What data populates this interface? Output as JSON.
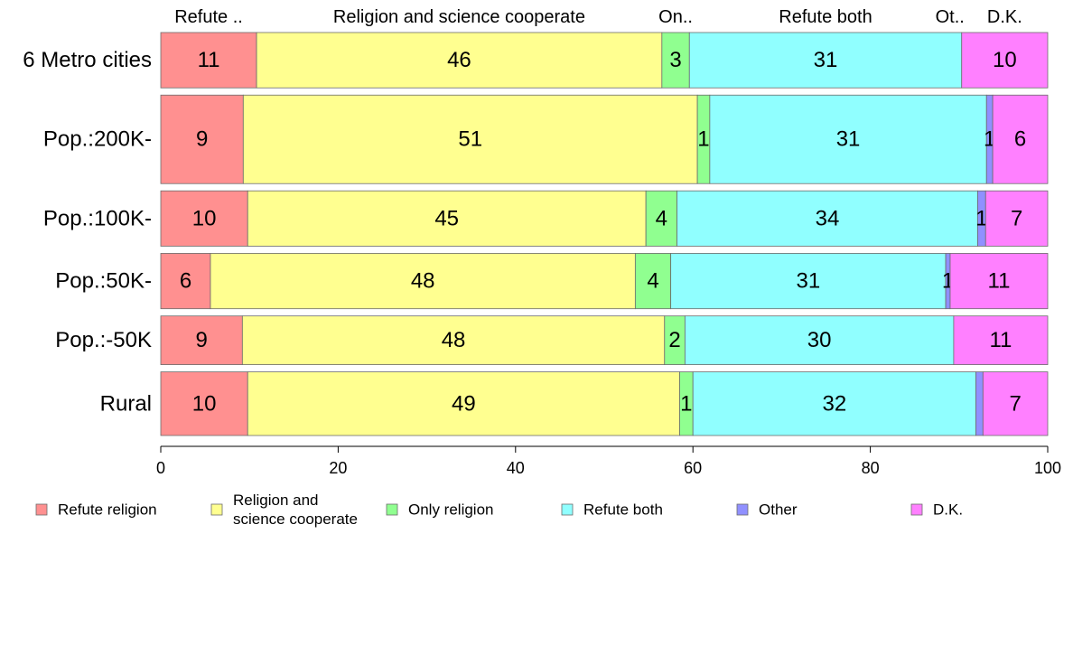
{
  "chart_data": {
    "type": "bar",
    "orientation": "horizontal",
    "stacked": true,
    "title": "",
    "xlabel": "",
    "ylabel": "",
    "xlim": [
      0,
      100
    ],
    "xticks": [
      0,
      20,
      40,
      60,
      80,
      100
    ],
    "categories": [
      "6 Metro cities",
      "Pop.:200K-",
      "Pop.:100K-",
      "Pop.:50K-",
      "Pop.:-50K",
      "Rural"
    ],
    "bar_weights": [
      1.0,
      1.6,
      1.0,
      1.0,
      0.88,
      1.15
    ],
    "series": [
      {
        "name": "Refute religion",
        "legend_lines": [
          "Refute religion"
        ],
        "header": "Refute ..",
        "color": "#FF9090",
        "values": [
          10.8,
          9.3,
          9.8,
          5.6,
          9.2,
          9.8
        ],
        "labels": [
          "11",
          "9",
          "10",
          "6",
          "9",
          "10"
        ]
      },
      {
        "name": "Religion and science cooperate",
        "legend_lines": [
          "Religion and",
          "science cooperate"
        ],
        "header": "Religion and science cooperate",
        "color": "#FFFF90",
        "values": [
          45.7,
          51.2,
          44.9,
          47.9,
          47.6,
          48.7
        ],
        "labels": [
          "46",
          "51",
          "45",
          "48",
          "48",
          "49"
        ]
      },
      {
        "name": "Only religion",
        "legend_lines": [
          "Only religion"
        ],
        "header": "On..",
        "color": "#90FF90",
        "values": [
          3.1,
          1.4,
          3.5,
          4.0,
          2.3,
          1.5
        ],
        "labels": [
          "3",
          "1",
          "4",
          "4",
          "2",
          "1"
        ]
      },
      {
        "name": "Refute both",
        "legend_lines": [
          "Refute both"
        ],
        "header": "Refute both",
        "color": "#90FFFF",
        "values": [
          30.7,
          31.2,
          33.9,
          31.0,
          30.3,
          31.9
        ],
        "labels": [
          "31",
          "31",
          "34",
          "31",
          "30",
          "32"
        ]
      },
      {
        "name": "Other",
        "legend_lines": [
          "Other"
        ],
        "header": "Ot..",
        "color": "#9090FF",
        "values": [
          0.0,
          0.7,
          0.9,
          0.5,
          0.0,
          0.8
        ],
        "labels": [
          "",
          "1",
          "1",
          "1",
          "",
          ""
        ]
      },
      {
        "name": "D.K.",
        "legend_lines": [
          "D.K."
        ],
        "header": "D.K.",
        "color": "#FF80FF",
        "values": [
          9.7,
          6.2,
          7.0,
          11.0,
          10.6,
          7.3
        ],
        "labels": [
          "10",
          "6",
          "7",
          "11",
          "11",
          "7"
        ]
      }
    ],
    "grid": false,
    "legend_position": "bottom"
  }
}
